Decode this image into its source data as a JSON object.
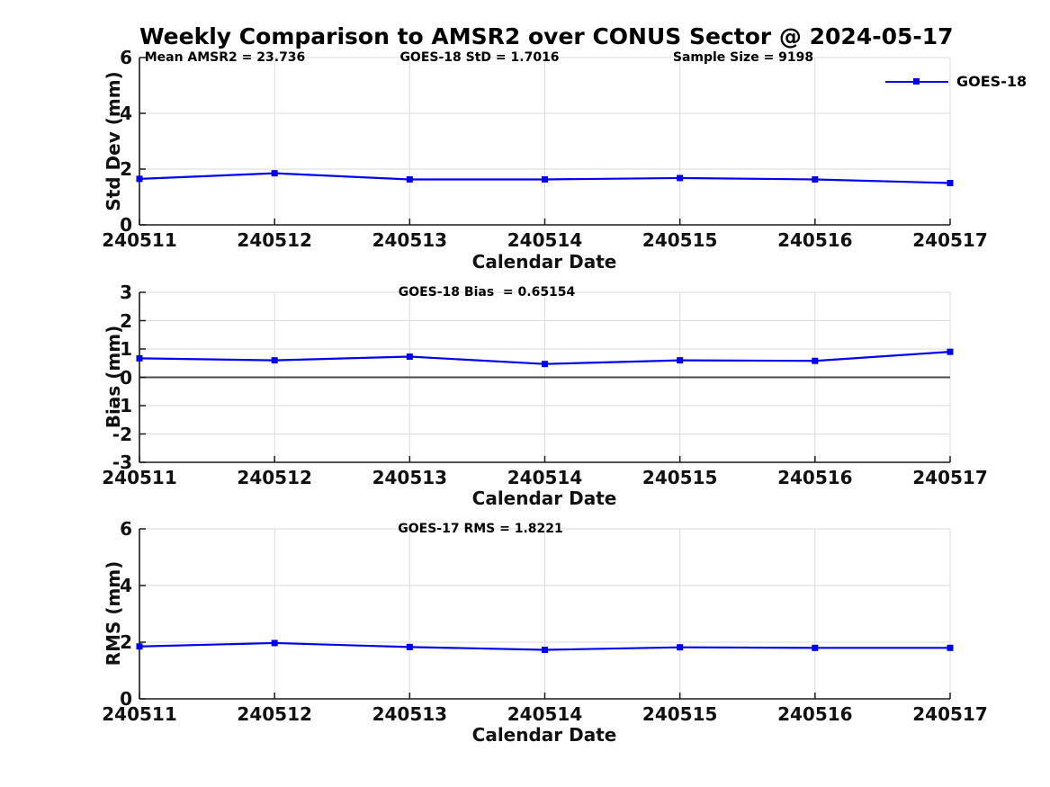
{
  "title": "Weekly Comparison to AMSR2 over CONUS Sector @ 2024-05-17",
  "colors": {
    "line": "#0000EE",
    "grid": "#DBDBDB",
    "spine": "#1A1A1A",
    "zero_line": "#4A4A4A"
  },
  "chart_data": [
    {
      "type": "line",
      "ylabel": "Std Dev (mm)",
      "xlabel": "Calendar Date",
      "ylim": [
        0,
        6
      ],
      "yticks": [
        0,
        2,
        4,
        6
      ],
      "grid": true,
      "categories": [
        "240511",
        "240512",
        "240513",
        "240514",
        "240515",
        "240516",
        "240517"
      ],
      "series": [
        {
          "name": "GOES-18",
          "color": "#0000EE",
          "marker": "square",
          "values": [
            1.65,
            1.85,
            1.63,
            1.63,
            1.68,
            1.63,
            1.5
          ]
        }
      ],
      "annotations": [
        {
          "text": "Mean AMSR2 = 23.736"
        },
        {
          "text": "GOES-18 StD = 1.7016"
        },
        {
          "text": "Sample Size = 9198"
        }
      ],
      "legend": {
        "label": "GOES-18",
        "position": "northeast"
      }
    },
    {
      "type": "line",
      "ylabel": "Bias (mm)",
      "xlabel": "Calendar Date",
      "ylim": [
        -3,
        3
      ],
      "yticks": [
        -3,
        -2,
        -1,
        0,
        1,
        2,
        3
      ],
      "grid": true,
      "zero_line": true,
      "categories": [
        "240511",
        "240512",
        "240513",
        "240514",
        "240515",
        "240516",
        "240517"
      ],
      "series": [
        {
          "name": "GOES-18",
          "color": "#0000EE",
          "marker": "square",
          "values": [
            0.67,
            0.6,
            0.73,
            0.47,
            0.6,
            0.58,
            0.9
          ]
        }
      ],
      "annotations": [
        {
          "text": "GOES-18 Bias  = 0.65154"
        }
      ]
    },
    {
      "type": "line",
      "ylabel": "RMS (mm)",
      "xlabel": "Calendar Date",
      "ylim": [
        0,
        6
      ],
      "yticks": [
        0,
        2,
        4,
        6
      ],
      "grid": true,
      "categories": [
        "240511",
        "240512",
        "240513",
        "240514",
        "240515",
        "240516",
        "240517"
      ],
      "series": [
        {
          "name": "GOES-18",
          "color": "#0000EE",
          "marker": "square",
          "values": [
            1.85,
            1.97,
            1.83,
            1.73,
            1.82,
            1.8,
            1.8
          ]
        }
      ],
      "annotations": [
        {
          "text": "GOES-17 RMS = 1.8221"
        }
      ]
    }
  ]
}
